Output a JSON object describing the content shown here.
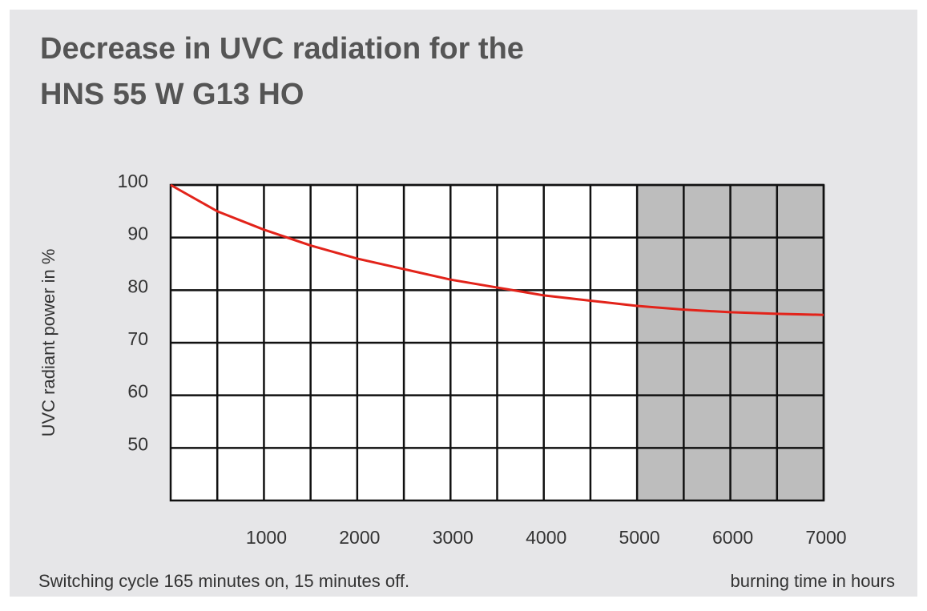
{
  "chart_data": {
    "type": "line",
    "title": [
      "Decrease in UVC radiation for the",
      "HNS 55 W G13 HO"
    ],
    "ylabel": "UVC radiant power in %",
    "xlabel": "burning time in hours",
    "note": "Switching cycle 165 minutes on, 15 minutes off.",
    "x": [
      0,
      500,
      1000,
      1500,
      2000,
      2500,
      3000,
      3500,
      4000,
      4500,
      5000,
      5500,
      6000,
      6500,
      7000
    ],
    "series": [
      {
        "name": "HNS 55 W G13 HO",
        "color": "#e2231a",
        "values": [
          100,
          95,
          91.5,
          88.5,
          86,
          84,
          82,
          80.5,
          79,
          78,
          77,
          76.3,
          75.8,
          75.5,
          75.3
        ]
      }
    ],
    "xlim": [
      0,
      7000
    ],
    "xticks": [
      1000,
      2000,
      3000,
      4000,
      5000,
      6000,
      7000
    ],
    "ylim": [
      40,
      100
    ],
    "yticks": [
      50,
      60,
      70,
      80,
      90,
      100
    ],
    "grid": true,
    "shaded_range": [
      5000,
      7000
    ],
    "shade_color": "#bdbdbd"
  }
}
